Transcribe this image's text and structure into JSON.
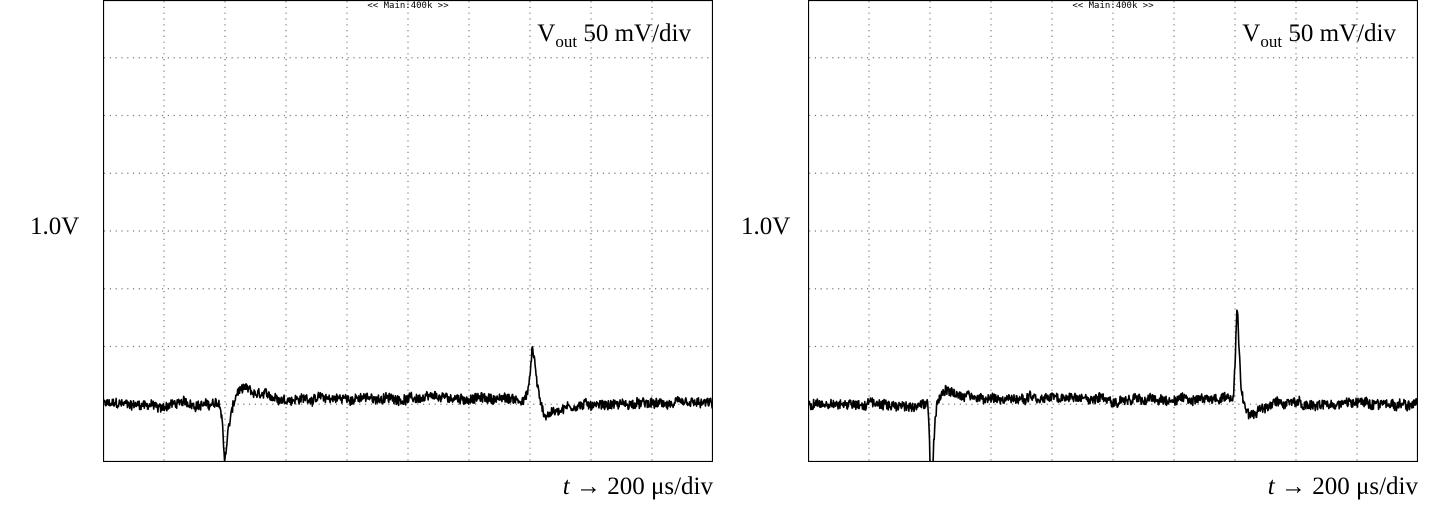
{
  "chart_data": [
    {
      "type": "line",
      "header": "<< Main:400k >>",
      "scale_label": {
        "symbol": "V",
        "subscript": "out",
        "text": "50 mV/div"
      },
      "reference_label": "1.0V",
      "time_label": {
        "var": "t",
        "arrow": "→",
        "text": "200 μs/div"
      },
      "divisions": {
        "x": 10,
        "y": 8
      },
      "grid": true,
      "trace_color": "#000000",
      "xlim": [
        0,
        2000
      ],
      "ylim_mV_rel": [
        -50,
        350
      ],
      "x_unit": "μs",
      "y_unit": "mV relative to 1.0V",
      "noise_amplitude_mV": 4,
      "series": [
        {
          "x": [
            0,
            160,
            180,
            200,
            215,
            260,
            320,
            360,
            384,
            392,
            398,
            404,
            412,
            425,
            440,
            460,
            500,
            600,
            700,
            800,
            900,
            1000,
            1100,
            1200,
            1300,
            1380,
            1395,
            1402,
            1407,
            1414,
            1422,
            1432,
            1450,
            1480,
            1520,
            1600,
            1700,
            1800,
            1900,
            2000
          ],
          "y": [
            0,
            0,
            -4,
            -3,
            0,
            1,
            0,
            0,
            0,
            -20,
            -48,
            -38,
            -20,
            -3,
            10,
            13,
            8,
            5,
            5,
            5,
            5,
            5,
            5,
            5,
            5,
            4,
            12,
            30,
            50,
            40,
            20,
            3,
            -10,
            -6,
            -2,
            0,
            0,
            0,
            0,
            0
          ]
        }
      ]
    },
    {
      "type": "line",
      "header": "<< Main:400k >>",
      "scale_label": {
        "symbol": "V",
        "subscript": "out",
        "text": "50 mV/div"
      },
      "reference_label": "1.0V",
      "time_label": {
        "var": "t",
        "arrow": "→",
        "text": "200 μs/div"
      },
      "divisions": {
        "x": 10,
        "y": 8
      },
      "grid": true,
      "trace_color": "#000000",
      "xlim": [
        0,
        2000
      ],
      "ylim_mV_rel": [
        -50,
        350
      ],
      "x_unit": "μs",
      "y_unit": "mV relative to 1.0V",
      "noise_amplitude_mV": 4,
      "series": [
        {
          "x": [
            0,
            300,
            360,
            392,
            398,
            403,
            406,
            410,
            416,
            425,
            440,
            460,
            500,
            600,
            700,
            800,
            900,
            1000,
            1100,
            1200,
            1300,
            1395,
            1402,
            1406,
            1409,
            1414,
            1420,
            1430,
            1445,
            1480,
            1520,
            1600,
            1700,
            1800,
            1900,
            2000
          ],
          "y": [
            0,
            0,
            0,
            0,
            -30,
            -90,
            -88,
            -45,
            -15,
            5,
            12,
            12,
            8,
            5,
            5,
            5,
            5,
            5,
            5,
            5,
            5,
            5,
            45,
            82,
            75,
            45,
            15,
            0,
            -8,
            -4,
            0,
            0,
            0,
            0,
            0,
            0
          ]
        }
      ]
    }
  ]
}
